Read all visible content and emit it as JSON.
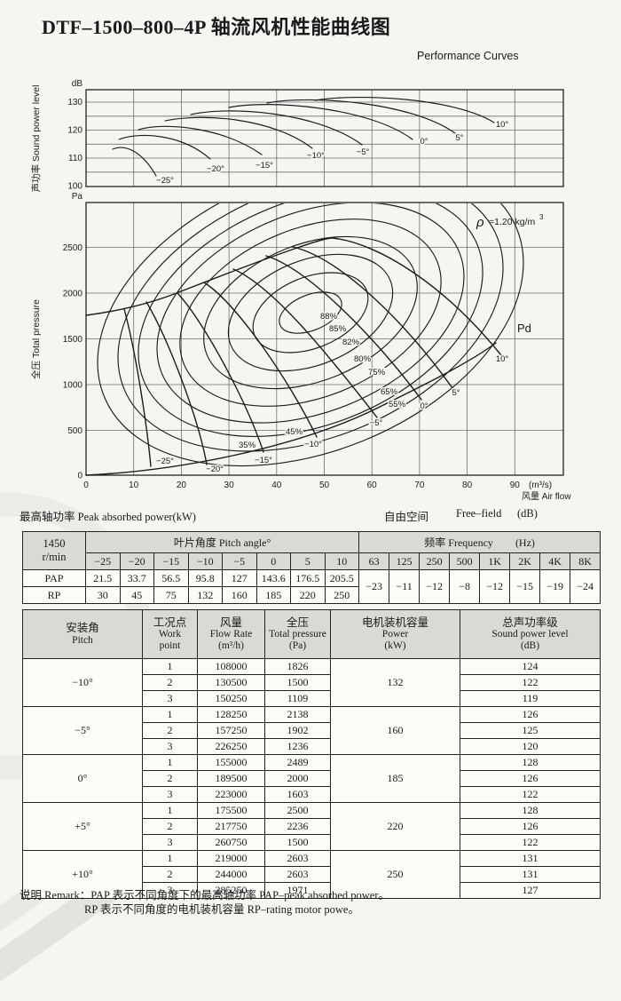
{
  "page": {
    "title": "DTF–1500–800–4P 轴流风机性能曲线图",
    "subtitle": "Performance Curves"
  },
  "chart_data": [
    {
      "type": "line",
      "name": "sound power level curves",
      "axis_title": "声功率 Sound power level",
      "unit": "dB",
      "ylim": [
        100,
        134
      ],
      "y_tick_labels": [
        "100",
        "110",
        "120",
        "130"
      ],
      "grid": "on",
      "series": [
        {
          "name": "−25°",
          "points": [
            [
              5.5,
              113.2
            ],
            [
              8,
              113.7
            ],
            [
              14.7,
              103.6
            ]
          ]
        },
        {
          "name": "−20°",
          "points": [
            [
              6.8,
              116.6
            ],
            [
              13,
              118.2
            ],
            [
              26,
              109.7
            ]
          ]
        },
        {
          "name": "−15°",
          "points": [
            [
              11,
              120.2
            ],
            [
              19,
              121.8
            ],
            [
              37,
              111.3
            ]
          ]
        },
        {
          "name": "−10°",
          "points": [
            [
              16.5,
              123.3
            ],
            [
              26,
              124.8
            ],
            [
              47.4,
              113.5
            ]
          ]
        },
        {
          "name": "−5°",
          "points": [
            [
              22,
              125.7
            ],
            [
              33,
              127.2
            ],
            [
              58,
              114.8
            ]
          ]
        },
        {
          "name": "0°",
          "points": [
            [
              30,
              128
            ],
            [
              42,
              129.3
            ],
            [
              68.5,
              116.5
            ]
          ]
        },
        {
          "name": "5°",
          "points": [
            [
              38,
              129.7
            ],
            [
              50,
              130.8
            ],
            [
              77.5,
              118.7
            ]
          ]
        },
        {
          "name": "10°",
          "points": [
            [
              48,
              130.5
            ],
            [
              62,
              131.5
            ],
            [
              85.6,
              122.6
            ]
          ]
        }
      ]
    },
    {
      "type": "line",
      "name": "total pressure vs air flow with efficiency contours",
      "y_axis_title": "全压 Total pressure",
      "y_unit": "Pa",
      "x_axis_title": "风量 Air flow",
      "x_unit": "(m³/s)",
      "x_ticks": [
        "0",
        "10",
        "20",
        "30",
        "40",
        "50",
        "60",
        "70",
        "80",
        "90"
      ],
      "y_ticks": [
        "0",
        "500",
        "1000",
        "1500",
        "2000",
        "2500"
      ],
      "ylim": [
        0,
        2980
      ],
      "grid": "on",
      "density_rho": "ρ",
      "density_value": "=1.20 kg/m",
      "density_exp": "3",
      "pd_label": "Pd",
      "efficiency_contours": [
        "88%",
        "85%",
        "82%",
        "80%",
        "75%",
        "65%",
        "55%",
        "45%",
        "35%"
      ],
      "stall_line": [
        [
          0,
          1750
        ],
        [
          20,
          2010
        ],
        [
          40,
          2440
        ],
        [
          52,
          2590
        ]
      ],
      "pd_curve": [
        [
          0,
          0
        ],
        [
          20,
          78
        ],
        [
          40,
          312
        ],
        [
          60,
          702
        ],
        [
          86,
          1442
        ]
      ],
      "pitch_curves": [
        {
          "pitch": "−25°",
          "start": [
            8,
            1815
          ],
          "end": [
            13.6,
            97
          ]
        },
        {
          "pitch": "−20°",
          "start": [
            12.7,
            1890
          ],
          "end": [
            25.3,
            116
          ]
        },
        {
          "pitch": "−15°",
          "start": [
            19.2,
            1990
          ],
          "end": [
            37.2,
            252
          ]
        },
        {
          "pitch": "−10°",
          "start": [
            24.8,
            2105
          ],
          "end": [
            48.4,
            417
          ]
        },
        {
          "pitch": "−5°",
          "start": [
            30.9,
            2250
          ],
          "end": [
            61.1,
            631
          ]
        },
        {
          "pitch": "0°",
          "start": [
            37.8,
            2400
          ],
          "end": [
            70.4,
            825
          ]
        },
        {
          "pitch": "5°",
          "start": [
            43.4,
            2495
          ],
          "end": [
            76.9,
            951
          ]
        },
        {
          "pitch": "10°",
          "start": [
            51.8,
            2590
          ],
          "end": [
            86.8,
            1311
          ]
        }
      ]
    }
  ],
  "section_labels": {
    "peak_power": "最高轴功率 Peak absorbed power(kW)",
    "free_field_zh": "自由空间",
    "free_field_en": "Free–field",
    "free_field_unit": "(dB)"
  },
  "power_table": {
    "speed": "1450",
    "speed_unit": "r/min",
    "pitch_header": "叶片角度 Pitch angle°",
    "freq_header": "频率 Frequency",
    "freq_unit": "(Hz)",
    "pitch_cols": [
      "−25",
      "−20",
      "−15",
      "−10",
      "−5",
      "0",
      "5",
      "10"
    ],
    "pap_label": "PAP",
    "pap_values": [
      "21.5",
      "33.7",
      "56.5",
      "95.8",
      "127",
      "143.6",
      "176.5",
      "205.5"
    ],
    "rp_label": "RP",
    "rp_values": [
      "30",
      "45",
      "75",
      "132",
      "160",
      "185",
      "220",
      "250"
    ],
    "freq_cols": [
      "63",
      "125",
      "250",
      "500",
      "1K",
      "2K",
      "4K",
      "8K"
    ],
    "freq_values": [
      "−23",
      "−11",
      "−12",
      "−8",
      "−12",
      "−15",
      "−19",
      "−24"
    ]
  },
  "perf_table": {
    "headers": [
      {
        "lines": [
          "安装角",
          "Pitch"
        ]
      },
      {
        "lines": [
          "工况点",
          "Work",
          "point"
        ]
      },
      {
        "lines": [
          "风量",
          "Flow Rate",
          "(m³/h)"
        ]
      },
      {
        "lines": [
          "全压",
          "Total pressure",
          "(Pa)"
        ]
      },
      {
        "lines": [
          "电机装机容量",
          "Power",
          "(kW)"
        ]
      },
      {
        "lines": [
          "总声功率级",
          "Sound power level",
          "(dB)"
        ]
      }
    ],
    "groups": [
      {
        "pitch": "−10°",
        "power": "132",
        "rows": [
          [
            "1",
            "108000",
            "1826",
            "124"
          ],
          [
            "2",
            "130500",
            "1500",
            "122"
          ],
          [
            "3",
            "150250",
            "1109",
            "119"
          ]
        ]
      },
      {
        "pitch": "−5°",
        "power": "160",
        "rows": [
          [
            "1",
            "128250",
            "2138",
            "126"
          ],
          [
            "2",
            "157250",
            "1902",
            "125"
          ],
          [
            "3",
            "226250",
            "1236",
            "120"
          ]
        ]
      },
      {
        "pitch": "0°",
        "power": "185",
        "rows": [
          [
            "1",
            "155000",
            "2489",
            "128"
          ],
          [
            "2",
            "189500",
            "2000",
            "126"
          ],
          [
            "3",
            "223000",
            "1603",
            "122"
          ]
        ]
      },
      {
        "pitch": "+5°",
        "power": "220",
        "rows": [
          [
            "1",
            "175500",
            "2500",
            "128"
          ],
          [
            "2",
            "217750",
            "2236",
            "126"
          ],
          [
            "3",
            "260750",
            "1500",
            "122"
          ]
        ]
      },
      {
        "pitch": "+10°",
        "power": "250",
        "rows": [
          [
            "1",
            "219000",
            "2603",
            "131"
          ],
          [
            "2",
            "244000",
            "2603",
            "131"
          ],
          [
            "3",
            "285250",
            "1971",
            "127"
          ]
        ]
      }
    ]
  },
  "remark": {
    "line1": "说明 Remark：PAP 表示不同角度下的最高轴功率 PAP–peak absorbed power。",
    "line2": "RP 表示不同角度的电机装机容量 RP–rating motor powe。"
  }
}
